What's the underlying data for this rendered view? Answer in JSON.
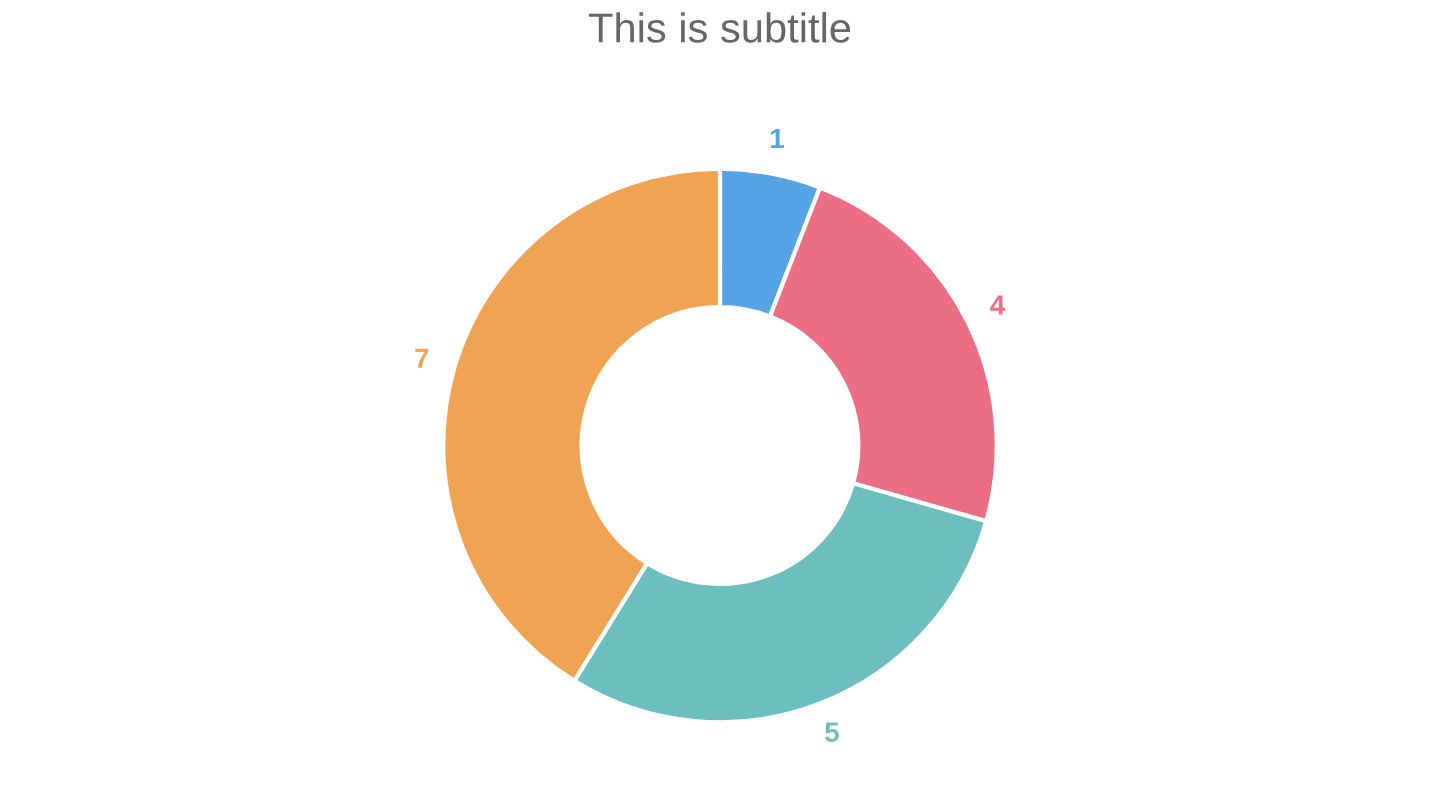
{
  "chart_data": {
    "type": "donut",
    "subtitle": "This is subtitle",
    "categories": [
      null,
      null,
      null,
      null
    ],
    "values": [
      1,
      4,
      5,
      7
    ],
    "colors": [
      "#56a3e6",
      "#ec6e85",
      "#6cbebf",
      "#f0a453"
    ],
    "data_labels": true
  }
}
